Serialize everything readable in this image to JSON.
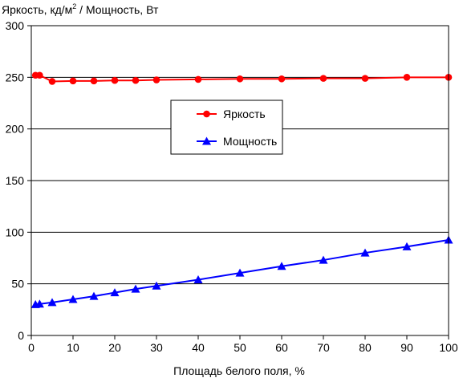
{
  "chart_data": {
    "type": "line",
    "title": "",
    "ylabel_main": "Яркость, кд/м",
    "ylabel_sup": "2",
    "ylabel_rest": " / Мощность, Вт",
    "xlabel": "Площадь белого поля, %",
    "xlim": [
      0,
      100
    ],
    "ylim": [
      0,
      300
    ],
    "xticks": [
      0,
      10,
      20,
      30,
      40,
      50,
      60,
      70,
      80,
      90,
      100
    ],
    "yticks": [
      0,
      50,
      100,
      150,
      200,
      250,
      300
    ],
    "grid": "horizontal",
    "legend_position": "center",
    "series": [
      {
        "name": "Яркость",
        "color": "#ff0000",
        "marker": "circle",
        "x": [
          1,
          2,
          5,
          10,
          15,
          20,
          25,
          30,
          40,
          50,
          60,
          70,
          80,
          90,
          100
        ],
        "y": [
          252,
          252,
          246,
          246.5,
          246.5,
          247,
          247,
          247.5,
          248,
          248.5,
          248.5,
          249,
          249,
          250,
          250
        ]
      },
      {
        "name": "Мощность",
        "color": "#0000ff",
        "marker": "triangle",
        "x": [
          1,
          2,
          5,
          10,
          15,
          20,
          25,
          30,
          40,
          50,
          60,
          70,
          80,
          90,
          100
        ],
        "y": [
          30,
          30.5,
          32,
          35,
          38,
          41.5,
          45,
          48,
          54,
          60.5,
          67,
          73,
          80,
          86,
          92.5
        ]
      }
    ]
  }
}
